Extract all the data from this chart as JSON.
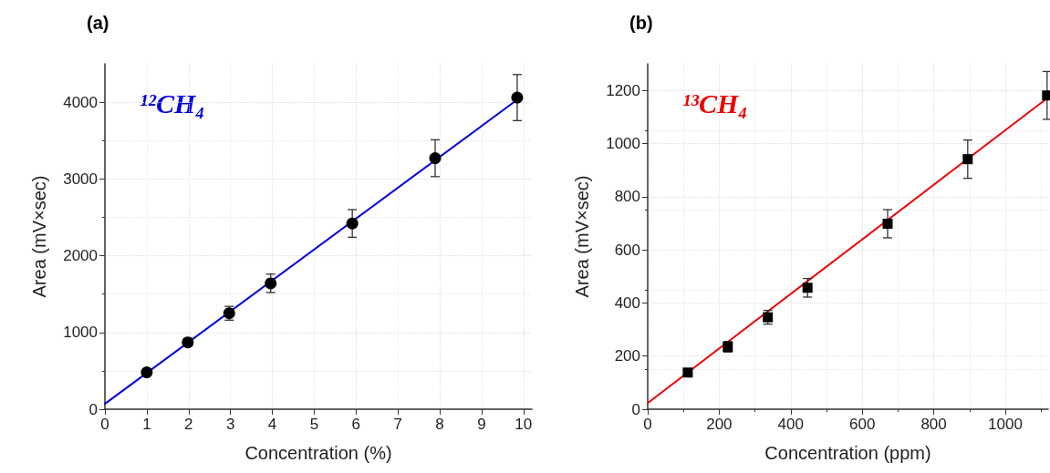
{
  "chart_data": [
    {
      "type": "scatter",
      "title": "(a)",
      "xlabel": "Concentration (%)",
      "ylabel": "Area (mV×sec)",
      "x": [
        1,
        1.98,
        2.97,
        3.96,
        5.91,
        7.89,
        9.85
      ],
      "xlim": [
        0,
        10.2
      ],
      "xticks": [
        0,
        1,
        2,
        3,
        4,
        5,
        6,
        7,
        8,
        9,
        10
      ],
      "ylim": [
        0,
        4500
      ],
      "yticks": [
        0,
        1000,
        2000,
        3000,
        4000
      ],
      "grid": true,
      "marker": "circle",
      "line_style": "solid",
      "series": [
        {
          "color": "#000000",
          "values": [
            480,
            870,
            1250,
            1640,
            2420,
            3270,
            4060
          ],
          "errors": [
            40,
            50,
            90,
            120,
            180,
            240,
            300
          ]
        },
        {
          "type": "line",
          "name": "¹²CH₄",
          "color": "#0000e0",
          "marker": "none",
          "x": [
            0,
            9.87
          ],
          "values": [
            70,
            4040
          ]
        }
      ]
    },
    {
      "type": "scatter",
      "title": "(b)",
      "xlabel": "Concentration (ppm)",
      "ylabel": "Area (mV×sec)",
      "x": [
        112,
        224,
        336,
        447,
        671,
        895,
        1117
      ],
      "xlim": [
        0,
        1120
      ],
      "xticks": [
        0,
        200,
        400,
        600,
        800,
        1000
      ],
      "ylim": [
        0,
        1300
      ],
      "yticks": [
        0,
        200,
        400,
        600,
        800,
        1000,
        1200
      ],
      "grid": true,
      "marker": "square",
      "line_style": "solid",
      "series": [
        {
          "color": "#000000",
          "values": [
            138,
            235,
            346,
            457,
            698,
            941,
            1181
          ],
          "errors": [
            12,
            20,
            26,
            35,
            53,
            72,
            90
          ]
        },
        {
          "type": "line",
          "name": "¹³CH₄",
          "color": "#ee0000",
          "marker": "none",
          "x": [
            0,
            1120
          ],
          "values": [
            23,
            1173
          ]
        }
      ]
    }
  ]
}
